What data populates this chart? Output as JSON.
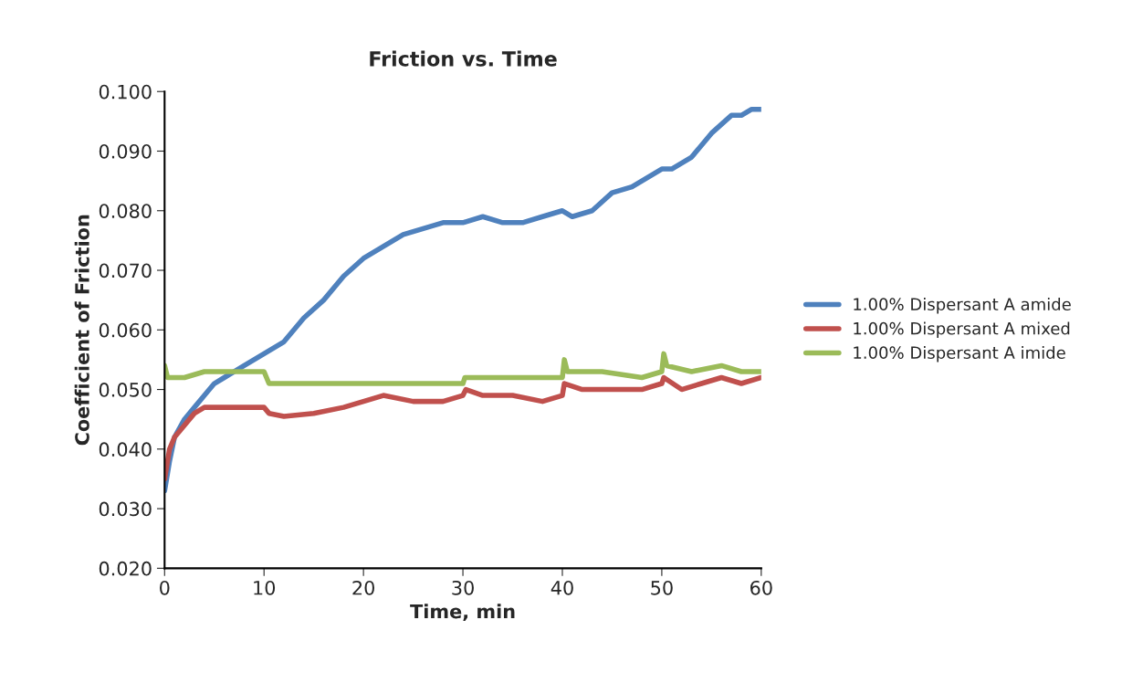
{
  "chart_data": {
    "type": "line",
    "title": "Friction vs. Time",
    "xlabel": "Time, min",
    "ylabel": "Coefficient of Friction",
    "xlim": [
      0,
      60
    ],
    "xticks": [
      0,
      10,
      20,
      30,
      40,
      50,
      60
    ],
    "ylim": [
      0.02,
      0.1
    ],
    "yticks": [
      {
        "value": 0.02,
        "label": "0.020"
      },
      {
        "value": 0.03,
        "label": "0.030"
      },
      {
        "value": 0.04,
        "label": "0.040"
      },
      {
        "value": 0.05,
        "label": "0.050"
      },
      {
        "value": 0.06,
        "label": "0.060"
      },
      {
        "value": 0.07,
        "label": "0.070"
      },
      {
        "value": 0.08,
        "label": "0.080"
      },
      {
        "value": 0.09,
        "label": "0.090"
      },
      {
        "value": 0.1,
        "label": "0.100"
      }
    ],
    "grid": false,
    "legend": "right",
    "marker": "none",
    "line_style": "solid",
    "series": [
      {
        "name": "1.00% Dispersant A amide",
        "color": "#4f81bd",
        "x": [
          0,
          0.5,
          1,
          2,
          3,
          4,
          5,
          6,
          8,
          10,
          12,
          14,
          16,
          18,
          20,
          22,
          24,
          26,
          28,
          30,
          32,
          34,
          36,
          38,
          40,
          41,
          43,
          45,
          47,
          49,
          50,
          51,
          53,
          55,
          57,
          58,
          59,
          60
        ],
        "values": [
          0.033,
          0.038,
          0.042,
          0.045,
          0.047,
          0.049,
          0.051,
          0.052,
          0.054,
          0.056,
          0.058,
          0.062,
          0.065,
          0.069,
          0.072,
          0.074,
          0.076,
          0.077,
          0.078,
          0.078,
          0.079,
          0.078,
          0.078,
          0.079,
          0.08,
          0.079,
          0.08,
          0.083,
          0.084,
          0.086,
          0.087,
          0.087,
          0.089,
          0.093,
          0.096,
          0.096,
          0.097,
          0.097
        ]
      },
      {
        "name": "1.00% Dispersant A mixed",
        "color": "#c0504d",
        "x": [
          0,
          0.5,
          1,
          2,
          3,
          4,
          6,
          8,
          10,
          10.5,
          12,
          15,
          18,
          20,
          22,
          25,
          28,
          30,
          30.3,
          32,
          35,
          38,
          40,
          40.2,
          42,
          45,
          48,
          50,
          50.2,
          52,
          54,
          56,
          58,
          60
        ],
        "values": [
          0.035,
          0.04,
          0.042,
          0.044,
          0.046,
          0.047,
          0.047,
          0.047,
          0.047,
          0.046,
          0.0455,
          0.046,
          0.047,
          0.048,
          0.049,
          0.048,
          0.048,
          0.049,
          0.05,
          0.049,
          0.049,
          0.048,
          0.049,
          0.051,
          0.05,
          0.05,
          0.05,
          0.051,
          0.052,
          0.05,
          0.051,
          0.052,
          0.051,
          0.052
        ]
      },
      {
        "name": "1.00% Dispersant A imide",
        "color": "#9bbb59",
        "x": [
          0,
          0.3,
          2,
          4,
          6,
          8,
          10,
          10.5,
          12,
          15,
          18,
          20,
          22,
          25,
          28,
          30,
          30.2,
          33,
          36,
          38,
          40,
          40.2,
          40.5,
          44,
          48,
          50,
          50.2,
          50.5,
          53,
          56,
          58,
          60
        ],
        "values": [
          0.054,
          0.052,
          0.052,
          0.053,
          0.053,
          0.053,
          0.053,
          0.051,
          0.051,
          0.051,
          0.051,
          0.051,
          0.051,
          0.051,
          0.051,
          0.051,
          0.052,
          0.052,
          0.052,
          0.052,
          0.052,
          0.055,
          0.053,
          0.053,
          0.052,
          0.053,
          0.056,
          0.054,
          0.053,
          0.054,
          0.053,
          0.053
        ]
      }
    ]
  }
}
